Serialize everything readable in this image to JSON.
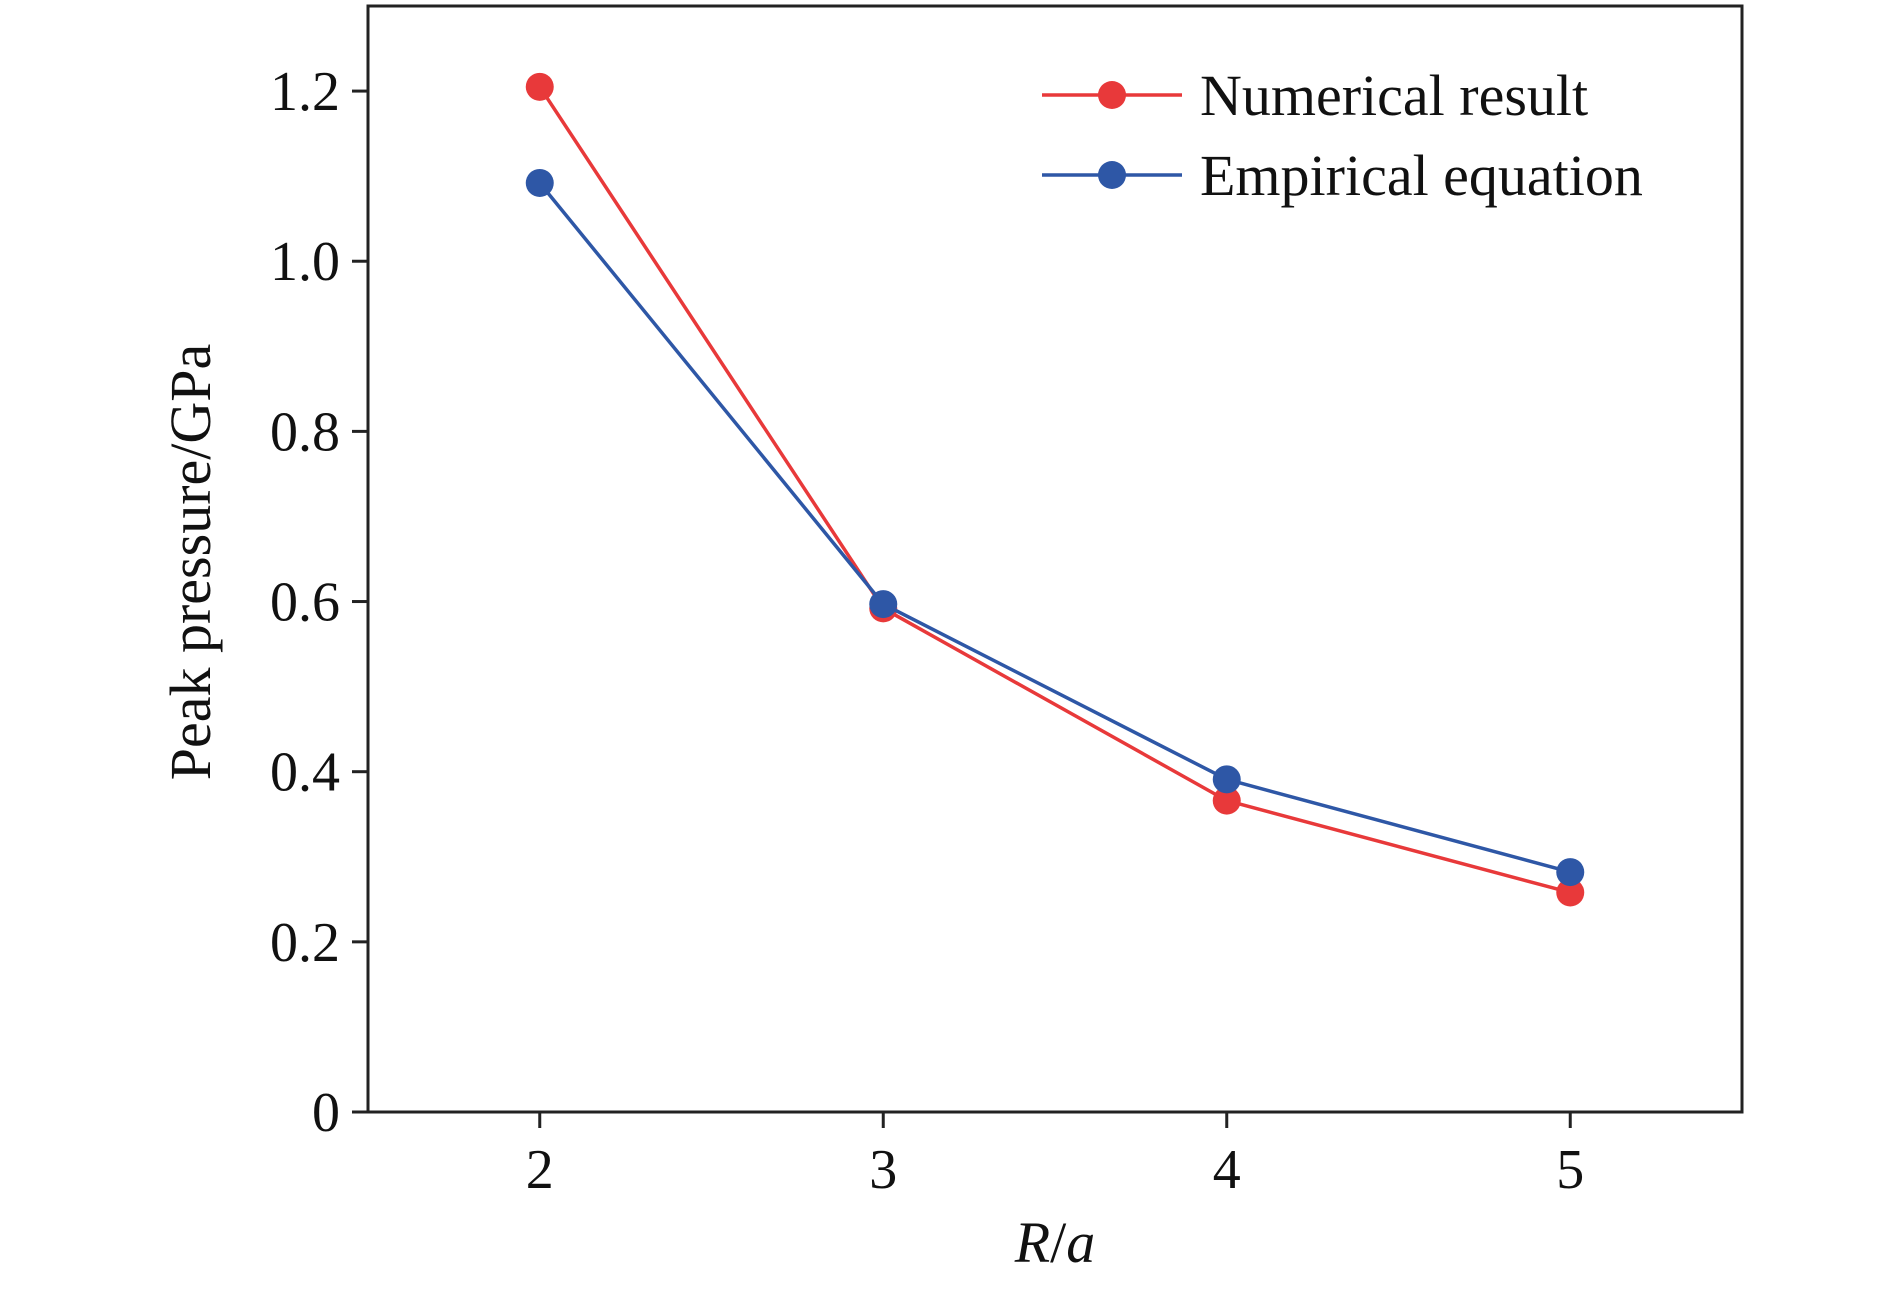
{
  "chart_data": {
    "type": "line",
    "title": "",
    "xlabel": {
      "var": "R",
      "sep": "/",
      "den": "a"
    },
    "ylabel": "Peak pressure/GPa",
    "x": [
      2,
      3,
      4,
      5
    ],
    "xlim": [
      1.5,
      5.5
    ],
    "ylim": [
      0,
      1.3
    ],
    "xticks": [
      2,
      3,
      4,
      5
    ],
    "xtick_labels": [
      "2",
      "3",
      "4",
      "5"
    ],
    "yticks": [
      0,
      0.2,
      0.4,
      0.6,
      0.8,
      1.0,
      1.2
    ],
    "ytick_labels": [
      "0",
      "0.2",
      "0.4",
      "0.6",
      "0.8",
      "1.0",
      "1.2"
    ],
    "grid": false,
    "legend_position": "top-right",
    "series": [
      {
        "name": "Numerical result",
        "color": "#e8393a",
        "values": [
          1.205,
          0.592,
          0.366,
          0.258
        ]
      },
      {
        "name": "Empirical equation",
        "color": "#2e57a6",
        "values": [
          1.092,
          0.597,
          0.391,
          0.282
        ]
      }
    ]
  }
}
